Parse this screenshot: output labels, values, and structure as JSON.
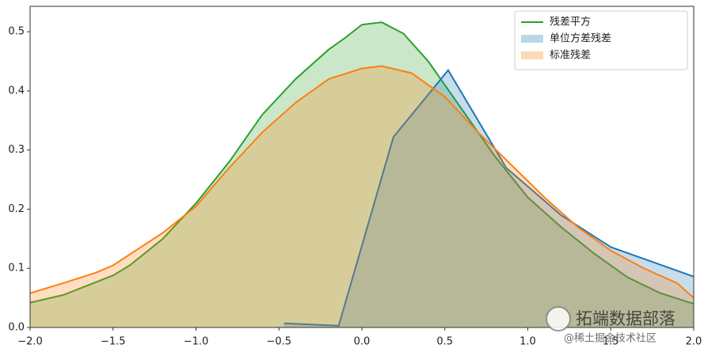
{
  "chart_data": {
    "type": "area",
    "series": [
      {
        "name": "残差平方",
        "color": "#2ca02c",
        "x": [
          -2.0,
          -1.8,
          -1.5,
          -1.4,
          -1.2,
          -1.0,
          -0.8,
          -0.6,
          -0.4,
          -0.2,
          -0.1,
          0.0,
          0.12,
          0.25,
          0.4,
          0.6,
          0.8,
          1.0,
          1.2,
          1.4,
          1.6,
          1.8,
          2.0
        ],
        "values": [
          0.042,
          0.055,
          0.088,
          0.105,
          0.15,
          0.21,
          0.28,
          0.36,
          0.42,
          0.47,
          0.49,
          0.512,
          0.516,
          0.497,
          0.45,
          0.37,
          0.29,
          0.22,
          0.17,
          0.125,
          0.085,
          0.058,
          0.04
        ]
      },
      {
        "name": "单位方差残差",
        "color": "#1f77b4",
        "x": [
          -0.47,
          -0.14,
          0.19,
          0.52,
          0.87,
          1.2,
          1.5,
          2.0
        ],
        "values": [
          0.007,
          0.003,
          0.322,
          0.435,
          0.27,
          0.19,
          0.136,
          0.086
        ]
      },
      {
        "name": "标准残差",
        "color": "#ff7f0e",
        "x": [
          -2.0,
          -1.8,
          -1.6,
          -1.5,
          -1.2,
          -1.0,
          -0.8,
          -0.6,
          -0.4,
          -0.2,
          0.0,
          0.12,
          0.3,
          0.5,
          0.7,
          0.9,
          1.1,
          1.3,
          1.5,
          1.7,
          1.9,
          2.0
        ],
        "values": [
          0.058,
          0.075,
          0.093,
          0.105,
          0.16,
          0.205,
          0.27,
          0.33,
          0.38,
          0.42,
          0.438,
          0.442,
          0.43,
          0.39,
          0.33,
          0.275,
          0.22,
          0.17,
          0.13,
          0.1,
          0.075,
          0.05
        ]
      }
    ],
    "xlim": [
      -2,
      2
    ],
    "ylim": [
      0,
      0.543
    ],
    "xticks": [
      {
        "value": -2,
        "label": "−2.0"
      },
      {
        "value": -1.5,
        "label": "−1.5"
      },
      {
        "value": -1,
        "label": "−1.0"
      },
      {
        "value": -0.5,
        "label": "−0.5"
      },
      {
        "value": 0,
        "label": "0.0"
      },
      0.5,
      {
        "value": 1,
        "label": "1.0"
      },
      1.5,
      {
        "value": 2,
        "label": "2.0"
      }
    ],
    "yticks": [
      {
        "value": 0,
        "label": "0.0"
      },
      0.1,
      0.2,
      0.3,
      0.4,
      0.5
    ],
    "legend": "upper right",
    "annotations": [
      "拓端数据部落",
      "@稀土掘金技术社区"
    ]
  }
}
